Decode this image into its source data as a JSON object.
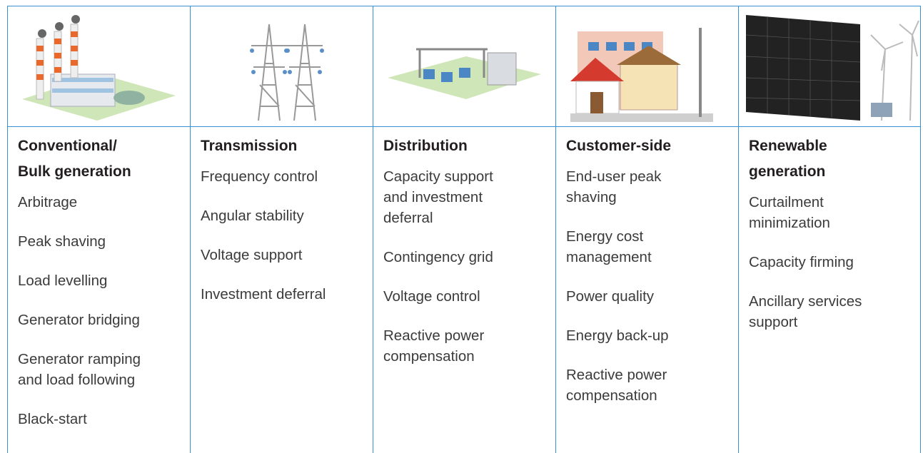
{
  "table": {
    "columns": [
      {
        "title": [
          "Conventional/",
          "Bulk generation"
        ],
        "items": [
          [
            "Arbitrage"
          ],
          [
            "Peak shaving"
          ],
          [
            "Load levelling"
          ],
          [
            "Generator bridging"
          ],
          [
            "Generator ramping",
            "and load following"
          ],
          [
            "Black-start"
          ]
        ]
      },
      {
        "title": [
          "Transmission"
        ],
        "items": [
          [
            "Frequency control"
          ],
          [
            "Angular stability"
          ],
          [
            "Voltage support"
          ],
          [
            "Investment deferral"
          ]
        ]
      },
      {
        "title": [
          "Distribution"
        ],
        "items": [
          [
            "Capacity support",
            "and investment",
            "deferral"
          ],
          [
            "Contingency grid"
          ],
          [
            "Voltage control"
          ],
          [
            "Reactive power",
            "compensation"
          ]
        ]
      },
      {
        "title": [
          "Customer-side"
        ],
        "items": [
          [
            "End-user peak",
            "shaving"
          ],
          [
            "Energy cost",
            "management"
          ],
          [
            "Power quality"
          ],
          [
            "Energy back-up"
          ],
          [
            "Reactive power",
            "compensation"
          ]
        ]
      },
      {
        "title": [
          "Renewable",
          "generation"
        ],
        "items": [
          [
            "Curtailment",
            "minimization"
          ],
          [
            "Capacity firming"
          ],
          [
            "Ancillary services",
            "support"
          ]
        ]
      }
    ]
  }
}
